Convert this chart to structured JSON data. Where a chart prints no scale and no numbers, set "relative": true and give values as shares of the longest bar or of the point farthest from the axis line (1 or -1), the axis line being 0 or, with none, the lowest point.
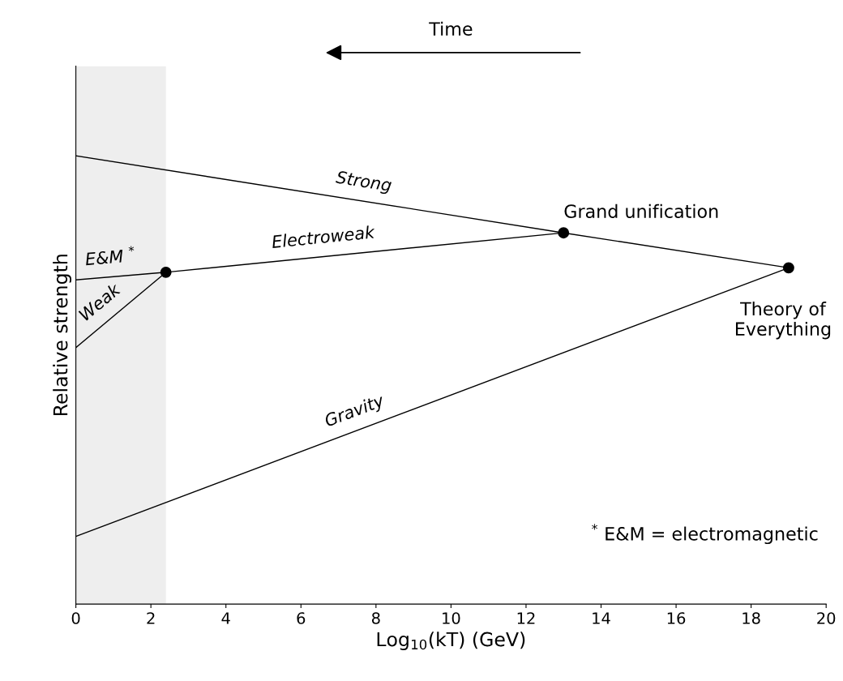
{
  "chart_data": {
    "type": "line",
    "relative": true,
    "xlabel": "Log$_{10}$(kT) (GeV)",
    "ylabel": "Relative strength",
    "xlim": [
      0,
      20
    ],
    "xticks": [
      0,
      2,
      4,
      6,
      8,
      10,
      12,
      14,
      16,
      18,
      20
    ],
    "grid": false,
    "legend": false,
    "marker": "none",
    "line_style": "solid",
    "series": [
      {
        "name": "Strong",
        "color": "#000000",
        "x": [
          0,
          13,
          19
        ],
        "values": [
          1,
          0.828,
          0.75
        ]
      },
      {
        "name": "Electroweak",
        "color": "#000000",
        "x": [
          2.4,
          13
        ],
        "values": [
          0.74,
          0.828
        ]
      },
      {
        "name": "E&M $^{*}$",
        "color": "#000000",
        "x": [
          0,
          2.4
        ],
        "values": [
          0.723,
          0.74
        ]
      },
      {
        "name": "Weak",
        "color": "#000000",
        "x": [
          0,
          2.4
        ],
        "values": [
          0.572,
          0.74
        ]
      },
      {
        "name": "Gravity",
        "color": "#000000",
        "x": [
          0,
          19
        ],
        "values": [
          0.151,
          0.75
        ]
      },
      {
        "type": "scatter",
        "marker": "circle",
        "color": "#000000",
        "x": [
          2.4,
          13,
          19
        ],
        "values": [
          0.74,
          0.828,
          0.75
        ]
      }
    ],
    "bands": [
      {
        "axis": "x",
        "from": 0,
        "to": 2.4,
        "color": "#eeeeee"
      }
    ],
    "annotations": [
      {
        "text": "Grand unification",
        "x": 13,
        "y": 0.828
      },
      {
        "text": "Theory of\nEverything",
        "x": 19,
        "y": 0.75
      },
      "Time",
      "$^{*}$ E&M = electromagnetic"
    ]
  }
}
